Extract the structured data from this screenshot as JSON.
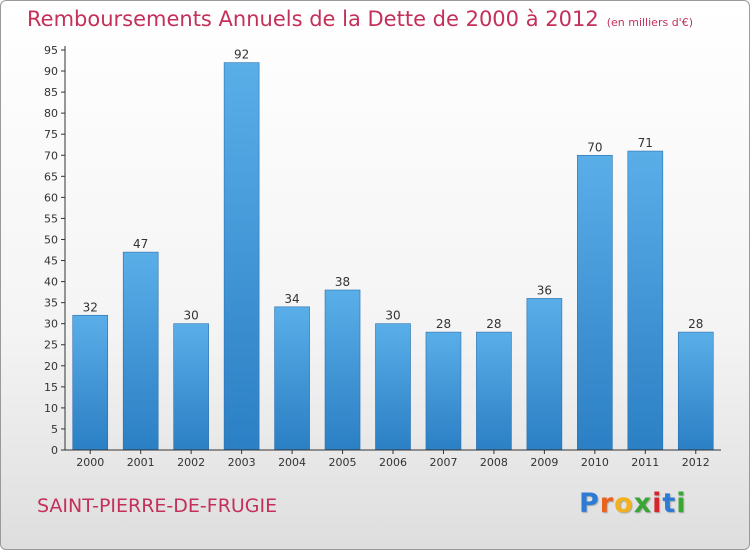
{
  "chart_data": {
    "type": "bar",
    "title": "Remboursements Annuels de la Dette de 2000 à 2012",
    "subtitle": "(en milliers d'€)",
    "categories": [
      "2000",
      "2001",
      "2002",
      "2003",
      "2004",
      "2005",
      "2006",
      "2007",
      "2008",
      "2009",
      "2010",
      "2011",
      "2012"
    ],
    "values": [
      32,
      47,
      30,
      92,
      34,
      38,
      30,
      28,
      28,
      36,
      70,
      71,
      28
    ],
    "ylim": [
      0,
      95
    ],
    "yticks": [
      0,
      5,
      10,
      15,
      20,
      25,
      30,
      35,
      40,
      45,
      50,
      55,
      60,
      65,
      70,
      75,
      80,
      85,
      90,
      95
    ],
    "grid": false,
    "bar_color_top": "#5aaee8",
    "bar_color_bottom": "#2b7fc4"
  },
  "place_name": "SAINT-PIERRE-DE-FRUGIE",
  "logo": {
    "letters": [
      {
        "ch": "P",
        "color": "#2e7bd6"
      },
      {
        "ch": "r",
        "color": "#e8641e"
      },
      {
        "ch": "o",
        "color": "#f2b01e"
      },
      {
        "ch": "x",
        "color": "#3aa635"
      },
      {
        "ch": "i",
        "color": "#d4262e"
      },
      {
        "ch": "t",
        "color": "#2e7bd6"
      },
      {
        "ch": "i",
        "color": "#3aa635"
      }
    ]
  }
}
